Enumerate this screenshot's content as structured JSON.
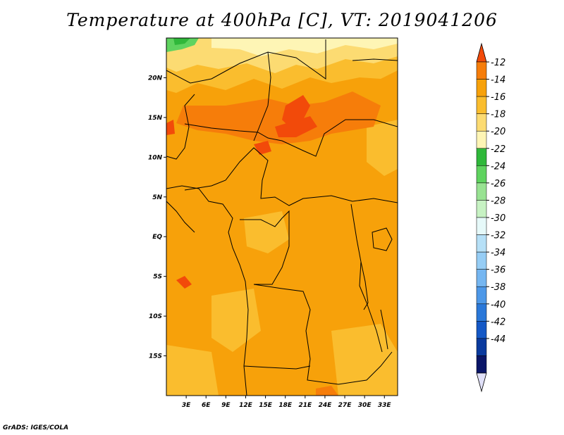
{
  "title": "Temperature at 400hPa [C], VT: 2019041206",
  "credit": "GrADS: IGES/COLA",
  "map": {
    "lon_range": [
      0,
      35
    ],
    "lat_range": [
      -20,
      25
    ],
    "lat_ticks": [
      {
        "value": 20,
        "label": "20N"
      },
      {
        "value": 15,
        "label": "15N"
      },
      {
        "value": 10,
        "label": "10N"
      },
      {
        "value": 5,
        "label": "5N"
      },
      {
        "value": 0,
        "label": "EQ"
      },
      {
        "value": -5,
        "label": "5S"
      },
      {
        "value": -10,
        "label": "10S"
      },
      {
        "value": -15,
        "label": "15S"
      }
    ],
    "lon_ticks": [
      {
        "value": 3,
        "label": "3E"
      },
      {
        "value": 6,
        "label": "6E"
      },
      {
        "value": 9,
        "label": "9E"
      },
      {
        "value": 12,
        "label": "12E"
      },
      {
        "value": 15,
        "label": "15E"
      },
      {
        "value": 18,
        "label": "18E"
      },
      {
        "value": 21,
        "label": "21E"
      },
      {
        "value": 24,
        "label": "24E"
      },
      {
        "value": 27,
        "label": "27E"
      },
      {
        "value": 30,
        "label": "30E"
      },
      {
        "value": 33,
        "label": "33E"
      }
    ]
  },
  "colorbar": {
    "colors": [
      "#f24a0a",
      "#f67d0a",
      "#f7a10a",
      "#fabd2e",
      "#fcdb72",
      "#fef5b5",
      "#2fb83a",
      "#5fd35f",
      "#98e292",
      "#c7f2c3",
      "#e6f9f9",
      "#b6e0f7",
      "#96cdf5",
      "#75b6f1",
      "#4d98e8",
      "#2a78d9",
      "#1458c6",
      "#0a3a9e",
      "#0a1668",
      "#e0e0f8"
    ],
    "labels": [
      "-12",
      "-14",
      "-16",
      "-18",
      "-20",
      "-22",
      "-24",
      "-26",
      "-28",
      "-30",
      "-32",
      "-34",
      "-36",
      "-38",
      "-40",
      "-42",
      "-44"
    ]
  }
}
